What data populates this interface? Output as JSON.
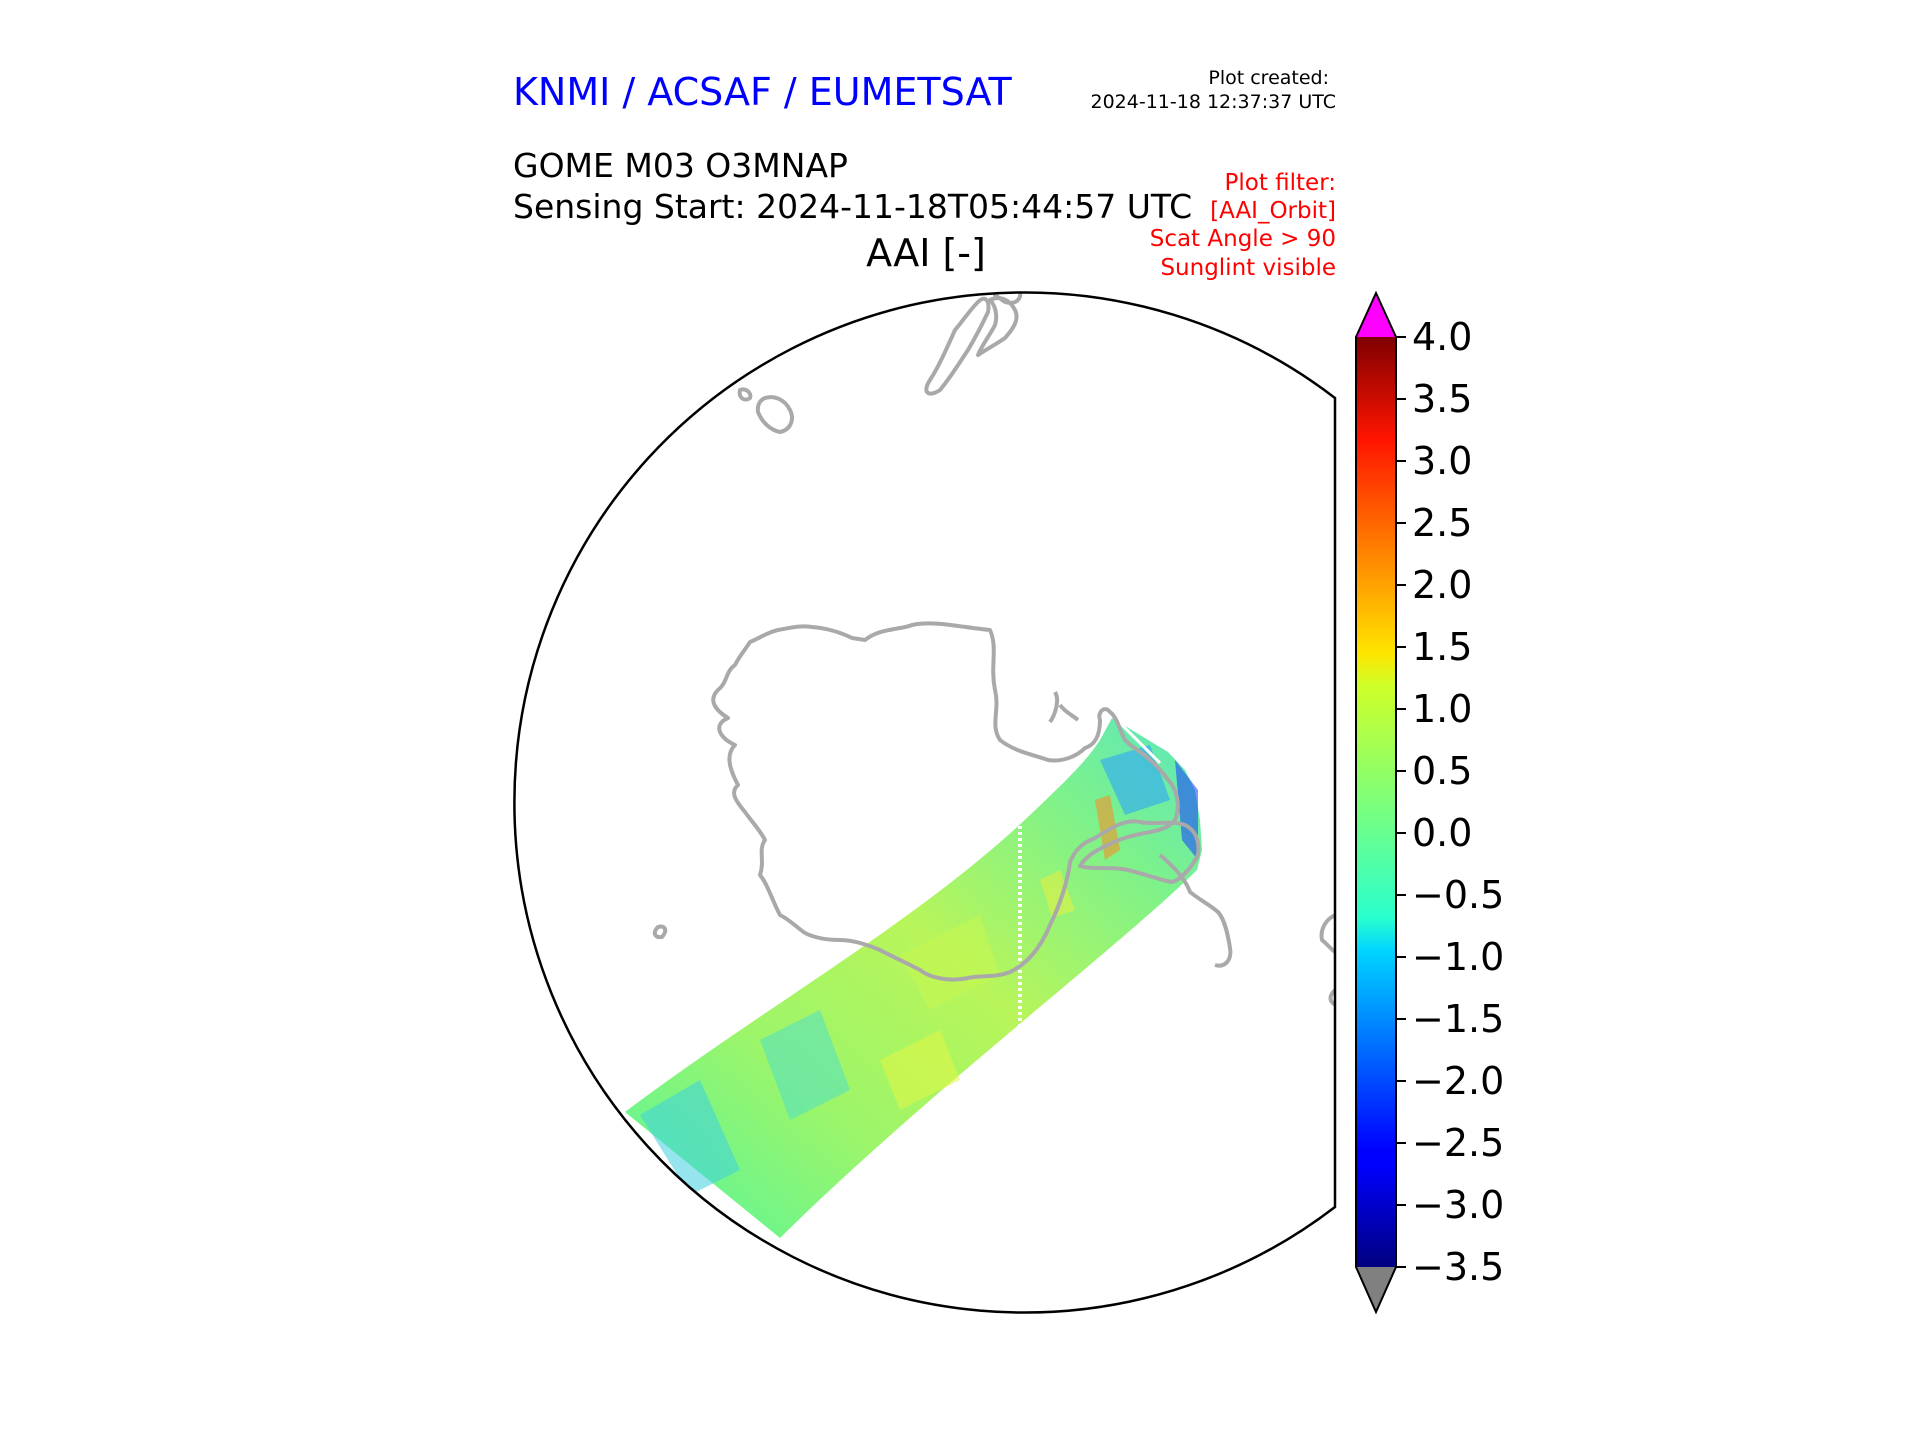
{
  "header": {
    "org": "KNMI / ACSAF / EUMETSAT",
    "created_label": "Plot created:",
    "created_value": "2024-11-18 12:37:37 UTC",
    "product": "GOME M03 O3MNAP",
    "sensing_start": "Sensing Start: 2024-11-18T05:44:57 UTC",
    "variable": "AAI [-]"
  },
  "filter": {
    "title": "Plot filter:",
    "lines": [
      "[AAI_Orbit]",
      "Scat Angle > 90",
      "Sunglint visible"
    ]
  },
  "colors": {
    "org": "#0000ff",
    "filter": "#ff0000",
    "coastline": "#a9a9a9",
    "over": "#ff00ff",
    "under": "#808080"
  },
  "colorbar": {
    "colormap": "jet",
    "vmin": -3.5,
    "vmax": 4.0,
    "ticks": [
      "4.0",
      "3.5",
      "3.0",
      "2.5",
      "2.0",
      "1.5",
      "1.0",
      "0.5",
      "0.0",
      "−0.5",
      "−1.0",
      "−1.5",
      "−2.0",
      "−2.5",
      "−3.0",
      "−3.5"
    ],
    "extend": "both"
  }
}
